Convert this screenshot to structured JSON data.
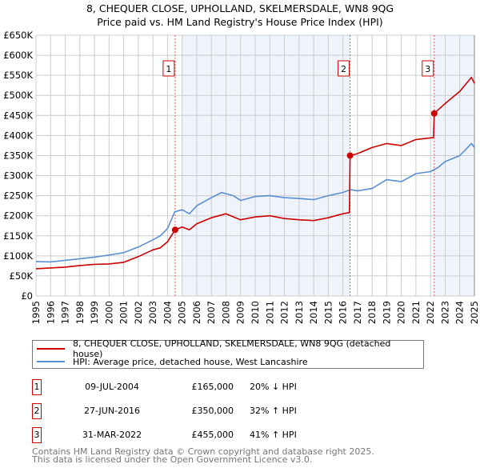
{
  "chart_data": {
    "type": "line",
    "title": "8, CHEQUER CLOSE, UPHOLLAND, SKELMERSDALE, WN8 9QG",
    "subtitle": "Price paid vs. HM Land Registry's House Price Index (HPI)",
    "xlim": [
      1995,
      2025
    ],
    "ylim": [
      0,
      650000
    ],
    "x_ticks": [
      "1995",
      "1996",
      "1997",
      "1998",
      "1999",
      "2000",
      "2001",
      "2002",
      "2003",
      "2004",
      "2005",
      "2006",
      "2007",
      "2008",
      "2009",
      "2010",
      "2011",
      "2012",
      "2013",
      "2014",
      "2015",
      "2016",
      "2017",
      "2018",
      "2019",
      "2020",
      "2021",
      "2022",
      "2023",
      "2024",
      "2025"
    ],
    "y_ticks": [
      {
        "v": 0,
        "label": "£0"
      },
      {
        "v": 50000,
        "label": "£50K"
      },
      {
        "v": 100000,
        "label": "£100K"
      },
      {
        "v": 150000,
        "label": "£150K"
      },
      {
        "v": 200000,
        "label": "£200K"
      },
      {
        "v": 250000,
        "label": "£250K"
      },
      {
        "v": 300000,
        "label": "£300K"
      },
      {
        "v": 350000,
        "label": "£350K"
      },
      {
        "v": 400000,
        "label": "£400K"
      },
      {
        "v": 450000,
        "label": "£450K"
      },
      {
        "v": 500000,
        "label": "£500K"
      },
      {
        "v": 550000,
        "label": "£550K"
      },
      {
        "v": 600000,
        "label": "£600K"
      },
      {
        "v": 650000,
        "label": "£650K"
      }
    ],
    "grid": true,
    "series": [
      {
        "name": "8, CHEQUER CLOSE, UPHOLLAND, SKELMERSDALE, WN8 9QG (detached house)",
        "color": "#cc0000",
        "x": [
          1995,
          1996,
          1997,
          1998,
          1999,
          2000,
          2001,
          2002,
          2003,
          2003.5,
          2004,
          2004.52,
          2005,
          2005.5,
          2006,
          2007,
          2008,
          2009,
          2010,
          2011,
          2012,
          2013,
          2014,
          2015,
          2016,
          2016.45,
          2016.49,
          2017,
          2018,
          2019,
          2020,
          2021,
          2022.2,
          2022.25,
          2023,
          2024,
          2024.8,
          2025
        ],
        "y": [
          68000,
          70000,
          72000,
          76000,
          79000,
          80000,
          84000,
          98000,
          115000,
          120000,
          135000,
          165000,
          172000,
          165000,
          180000,
          195000,
          205000,
          190000,
          197000,
          200000,
          193000,
          190000,
          188000,
          195000,
          205000,
          208000,
          350000,
          355000,
          370000,
          380000,
          375000,
          390000,
          395000,
          455000,
          480000,
          510000,
          545000,
          530000
        ]
      },
      {
        "name": "HPI: Average price, detached house, West Lancashire",
        "color": "#5b8fd0",
        "x": [
          1995,
          1996,
          1997,
          1998,
          1999,
          2000,
          2001,
          2002,
          2003,
          2003.5,
          2004,
          2004.5,
          2005,
          2005.5,
          2006,
          2007,
          2007.7,
          2008.5,
          2009,
          2010,
          2011,
          2012,
          2013,
          2014,
          2015,
          2016,
          2016.5,
          2017,
          2018,
          2019,
          2020,
          2021,
          2022,
          2022.5,
          2023,
          2024,
          2024.8,
          2025
        ],
        "y": [
          86000,
          85000,
          89000,
          93000,
          97000,
          102000,
          108000,
          122000,
          140000,
          150000,
          168000,
          210000,
          215000,
          205000,
          225000,
          245000,
          258000,
          250000,
          238000,
          248000,
          250000,
          245000,
          243000,
          240000,
          250000,
          258000,
          265000,
          262000,
          268000,
          290000,
          285000,
          305000,
          310000,
          320000,
          335000,
          350000,
          380000,
          370000
        ]
      }
    ],
    "sales": [
      {
        "n": "1",
        "x": 2004.52,
        "y": 165000,
        "date": "09-JUL-2004",
        "price": "£165,000",
        "hpi": "20% ↓ HPI"
      },
      {
        "n": "2",
        "x": 2016.49,
        "y": 350000,
        "date": "27-JUN-2016",
        "price": "£350,000",
        "hpi": "32% ↑ HPI"
      },
      {
        "n": "3",
        "x": 2022.25,
        "y": 455000,
        "date": "31-MAR-2022",
        "price": "£455,000",
        "hpi": "41% ↑ HPI"
      }
    ],
    "shaded_ranges": [
      [
        2005,
        2016.49
      ],
      [
        2022.25,
        2025
      ]
    ],
    "legend_position": "below"
  },
  "footer": {
    "line1": "Contains HM Land Registry data © Crown copyright and database right 2025.",
    "line2": "This data is licensed under the Open Government Licence v3.0."
  },
  "colors": {
    "red": "#cc0000",
    "blue": "#5b8fd0",
    "shade": "#eef3fc"
  }
}
